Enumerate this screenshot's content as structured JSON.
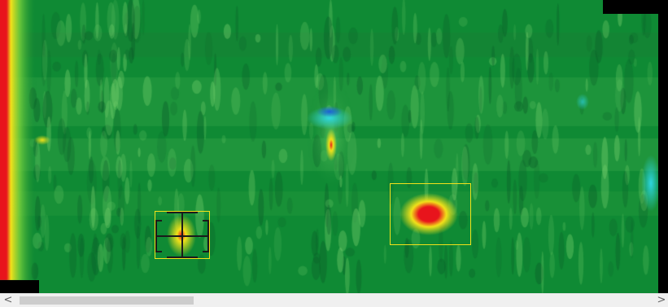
{
  "viewer": {
    "type": "heatmap-scan",
    "palette": {
      "background": "#0f8a34",
      "low": "#1a5fd8",
      "mid_low": "#2fd6e0",
      "mid": "#f2e21a",
      "high": "#e8141c"
    },
    "roi_color": "#f2e21a",
    "crosshair_color": "#1b1b1b"
  },
  "scrollbar": {
    "left_icon": "chevron-left-icon",
    "right_icon": "chevron-right-icon",
    "left_glyph": "<",
    "right_glyph": ">"
  }
}
